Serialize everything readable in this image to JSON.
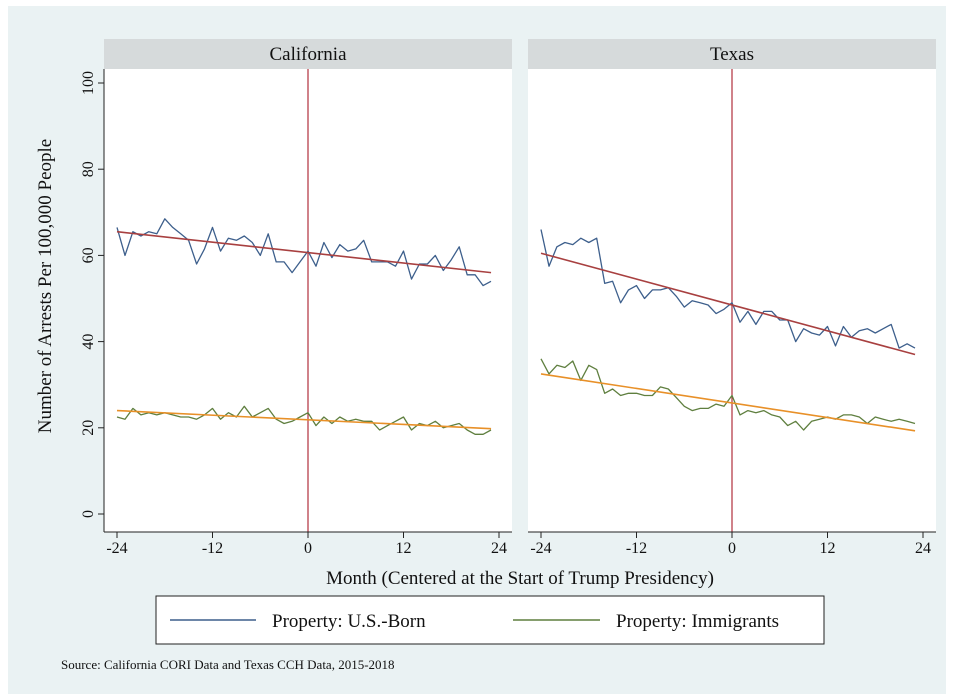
{
  "chart_data": {
    "type": "line",
    "ylabel": "Number of Arrests Per 100,000 People",
    "xlabel": "Month (Centered at the Start of Trump Presidency)",
    "source": "Source: California CORI Data and Texas CCH Data, 2015-2018",
    "xlim": [
      -24,
      24
    ],
    "ylim": [
      0,
      100
    ],
    "xticks": [
      -24,
      -12,
      0,
      12,
      24
    ],
    "yticks": [
      0,
      20,
      40,
      60,
      80,
      100
    ],
    "grid": false,
    "reference_line_x": 0,
    "legend_position": "bottom",
    "colors": {
      "us_born": "#3d5f8c",
      "immigrants": "#5f7f3f",
      "fit_us_born": "#a84040",
      "fit_immigrants": "#e89028",
      "reference": "#b0303c"
    },
    "legend": [
      {
        "label": "Property: U.S.-Born",
        "color": "#3d5f8c"
      },
      {
        "label": "Property: Immigrants",
        "color": "#5f7f3f"
      }
    ],
    "panels": [
      {
        "title": "California",
        "series": [
          {
            "name": "Property: U.S.-Born",
            "x": [
              -24,
              -23,
              -22,
              -21,
              -20,
              -19,
              -18,
              -17,
              -16,
              -15,
              -14,
              -13,
              -12,
              -11,
              -10,
              -9,
              -8,
              -7,
              -6,
              -5,
              -4,
              -3,
              -2,
              -1,
              0,
              1,
              2,
              3,
              4,
              5,
              6,
              7,
              8,
              9,
              10,
              11,
              12,
              13,
              14,
              15,
              16,
              17,
              18,
              19,
              20,
              21,
              22,
              23
            ],
            "y": [
              66.5,
              60,
              65.5,
              64.5,
              65.5,
              65,
              68.5,
              66.5,
              65,
              63.5,
              58,
              61.5,
              66.5,
              61,
              64,
              63.5,
              64.5,
              63,
              60,
              65,
              58.5,
              58.5,
              56,
              58.5,
              61,
              57.5,
              63,
              59.5,
              62.5,
              61,
              61.5,
              63.5,
              58.5,
              58.5,
              58.5,
              57.5,
              61,
              54.5,
              58,
              58,
              60,
              56.5,
              59,
              62,
              55.5,
              55.5,
              53,
              54
            ]
          },
          {
            "name": "Property: Immigrants",
            "x": [
              -24,
              -23,
              -22,
              -21,
              -20,
              -19,
              -18,
              -17,
              -16,
              -15,
              -14,
              -13,
              -12,
              -11,
              -10,
              -9,
              -8,
              -7,
              -6,
              -5,
              -4,
              -3,
              -2,
              -1,
              0,
              1,
              2,
              3,
              4,
              5,
              6,
              7,
              8,
              9,
              10,
              11,
              12,
              13,
              14,
              15,
              16,
              17,
              18,
              19,
              20,
              21,
              22,
              23
            ],
            "y": [
              22.5,
              22,
              24.5,
              23,
              23.5,
              23,
              23.5,
              23,
              22.5,
              22.5,
              22,
              23,
              24.5,
              22,
              23.5,
              22.5,
              25,
              22.5,
              23.5,
              24.5,
              22,
              21,
              21.5,
              22.5,
              23.5,
              20.5,
              22.5,
              21,
              22.5,
              21.5,
              22,
              21.5,
              21.5,
              19.5,
              20.5,
              21.5,
              22.5,
              19.5,
              21,
              20.5,
              21.5,
              20,
              20.5,
              21,
              19.5,
              18.5,
              18.5,
              19.5
            ]
          }
        ],
        "fits": [
          {
            "x": [
              -24,
              23
            ],
            "y": [
              65.5,
              56
            ]
          },
          {
            "x": [
              -24,
              23
            ],
            "y": [
              24,
              19.8
            ]
          }
        ]
      },
      {
        "title": "Texas",
        "series": [
          {
            "name": "Property: U.S.-Born",
            "x": [
              -24,
              -23,
              -22,
              -21,
              -20,
              -19,
              -18,
              -17,
              -16,
              -15,
              -14,
              -13,
              -12,
              -11,
              -10,
              -9,
              -8,
              -7,
              -6,
              -5,
              -4,
              -3,
              -2,
              -1,
              0,
              1,
              2,
              3,
              4,
              5,
              6,
              7,
              8,
              9,
              10,
              11,
              12,
              13,
              14,
              15,
              16,
              17,
              18,
              19,
              20,
              21,
              22,
              23
            ],
            "y": [
              66,
              57.5,
              62,
              63,
              62.5,
              64,
              63,
              64,
              53.5,
              54,
              49,
              52,
              53,
              50,
              52,
              52,
              52.5,
              50.5,
              48,
              49.5,
              49,
              48.5,
              46.5,
              47.5,
              49,
              44.5,
              47,
              44,
              47,
              47,
              45,
              45,
              40,
              43,
              42,
              41.5,
              43.5,
              39,
              43.5,
              41,
              42.5,
              43,
              42,
              43,
              44,
              38.5,
              39.5,
              38.5
            ]
          },
          {
            "name": "Property: Immigrants",
            "x": [
              -24,
              -23,
              -22,
              -21,
              -20,
              -19,
              -18,
              -17,
              -16,
              -15,
              -14,
              -13,
              -12,
              -11,
              -10,
              -9,
              -8,
              -7,
              -6,
              -5,
              -4,
              -3,
              -2,
              -1,
              0,
              1,
              2,
              3,
              4,
              5,
              6,
              7,
              8,
              9,
              10,
              11,
              12,
              13,
              14,
              15,
              16,
              17,
              18,
              19,
              20,
              21,
              22,
              23
            ],
            "y": [
              36,
              32.5,
              34.5,
              34,
              35.5,
              31,
              34.5,
              33.5,
              28,
              29,
              27.5,
              28,
              28,
              27.5,
              27.5,
              29.5,
              29,
              27,
              25,
              24,
              24.5,
              24.5,
              25.5,
              25,
              27.5,
              23,
              24,
              23.5,
              24,
              23,
              22.5,
              20.5,
              21.5,
              19.5,
              21.5,
              22,
              22.5,
              22,
              23,
              23,
              22.5,
              21,
              22.5,
              22,
              21.5,
              22,
              21.5,
              21
            ]
          }
        ],
        "fits": [
          {
            "x": [
              -24,
              23
            ],
            "y": [
              60.5,
              37
            ]
          },
          {
            "x": [
              -24,
              23
            ],
            "y": [
              32.5,
              19.3
            ]
          }
        ]
      }
    ]
  }
}
